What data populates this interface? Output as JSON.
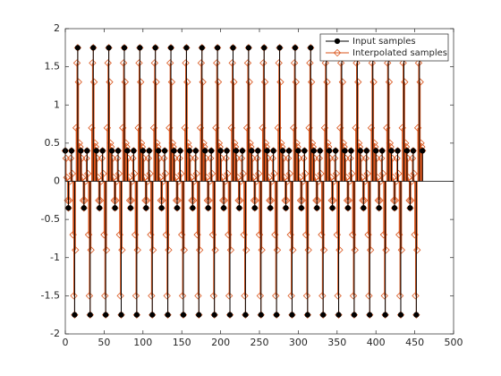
{
  "chart_data": {
    "type": "stem",
    "xlim": [
      0,
      500
    ],
    "xticks": [
      0,
      50,
      100,
      150,
      200,
      250,
      300,
      350,
      400,
      450,
      500
    ],
    "ylim": [
      -2,
      2
    ],
    "yticks": [
      -2,
      -1.5,
      -1,
      -0.5,
      0,
      0.5,
      1,
      1.5,
      2
    ],
    "legend": "northeast",
    "series": [
      {
        "name": "Input samples",
        "color": "#000000",
        "x": [
          0,
          4,
          8,
          12,
          16,
          20,
          24,
          28,
          32,
          36,
          40,
          44,
          48,
          52,
          56,
          60,
          64,
          68,
          72,
          76,
          80,
          84,
          88,
          92,
          96,
          100,
          104,
          108,
          112,
          116,
          120,
          124,
          128,
          132,
          136,
          140,
          144,
          148,
          152,
          156,
          160,
          164,
          168,
          172,
          176,
          180,
          184,
          188,
          192,
          196,
          200,
          204,
          208,
          212,
          216,
          220,
          224,
          228,
          232,
          236,
          240,
          244,
          248,
          252,
          256,
          260,
          264,
          268,
          272,
          276,
          280,
          284,
          288,
          292,
          296,
          300,
          304,
          308,
          312,
          316,
          320,
          324,
          328,
          332,
          336,
          340,
          344,
          348,
          352,
          356,
          360,
          364,
          368,
          372,
          376,
          380,
          384,
          388,
          392,
          396,
          400,
          404,
          408,
          412,
          416,
          420,
          424,
          428,
          432,
          436,
          440,
          444,
          448,
          452,
          456,
          460
        ],
        "values": [
          0.4,
          -0.35,
          0.4,
          -1.75,
          1.75,
          0.4,
          -0.35,
          0.4,
          -1.75,
          1.75,
          0.4,
          -0.35,
          0.4,
          -1.75,
          1.75,
          0.4,
          -0.35,
          0.4,
          -1.75,
          1.75,
          0.4,
          -0.35,
          0.4,
          -1.75,
          1.75,
          0.4,
          -0.35,
          0.4,
          -1.75,
          1.75,
          0.4,
          -0.35,
          0.4,
          -1.75,
          1.75,
          0.4,
          -0.35,
          0.4,
          -1.75,
          1.75,
          0.4,
          -0.35,
          0.4,
          -1.75,
          1.75,
          0.4,
          -0.35,
          0.4,
          -1.75,
          1.75,
          0.4,
          -0.35,
          0.4,
          -1.75,
          1.75,
          0.4,
          -0.35,
          0.4,
          -1.75,
          1.75,
          0.4,
          -0.35,
          0.4,
          -1.75,
          1.75,
          0.4,
          -0.35,
          0.4,
          -1.75,
          1.75,
          0.4,
          -0.35,
          0.4,
          -1.75,
          1.75,
          0.4,
          -0.35,
          0.4,
          -1.75,
          1.75,
          0.4,
          -0.35,
          0.4,
          -1.75,
          1.75,
          0.4,
          -0.35,
          0.4,
          -1.75,
          1.75,
          0.4,
          -0.35,
          0.4,
          -1.75,
          1.75,
          0.4,
          -0.35,
          0.4,
          -1.75,
          1.75,
          0.4,
          -0.35,
          0.4,
          -1.75,
          1.75,
          0.4,
          -0.35,
          0.4,
          -1.75,
          1.75,
          0.4,
          -0.35,
          0.4,
          -1.75,
          1.75,
          0.4
        ]
      },
      {
        "name": "Interpolated samples",
        "color": "#d95319",
        "values": [
          0.4,
          0.3,
          0.05,
          -0.25,
          -0.35,
          -0.25,
          0,
          0.3,
          0.4,
          0.1,
          -0.7,
          -1.5,
          -1.75,
          -0.9,
          0.7,
          1.55,
          1.75,
          1.3,
          0.5,
          0.45,
          0.4,
          0.3,
          0.05,
          -0.25,
          -0.35,
          -0.25,
          0,
          0.3,
          0.4,
          0.1,
          -0.7,
          -1.5,
          -1.75,
          -0.9,
          0.7,
          1.55,
          1.75,
          1.3,
          0.5,
          0.45,
          0.4,
          0.3,
          0.05,
          -0.25,
          -0.35,
          -0.25,
          0,
          0.3,
          0.4,
          0.1,
          -0.7,
          -1.5,
          -1.75,
          -0.9,
          0.7,
          1.55,
          1.75,
          1.3,
          0.5,
          0.45,
          0.4,
          0.3,
          0.05,
          -0.25,
          -0.35,
          -0.25,
          0,
          0.3,
          0.4,
          0.1,
          -0.7,
          -1.5,
          -1.75,
          -0.9,
          0.7,
          1.55,
          1.75,
          1.3,
          0.5,
          0.45,
          0.4,
          0.3,
          0.05,
          -0.25,
          -0.35,
          -0.25,
          0,
          0.3,
          0.4,
          0.1,
          -0.7,
          -1.5,
          -1.75,
          -0.9,
          0.7,
          1.55,
          1.75,
          1.3,
          0.5,
          0.45,
          0.4,
          0.3,
          0.05,
          -0.25,
          -0.35,
          -0.25,
          0,
          0.3,
          0.4,
          0.1,
          -0.7,
          -1.5,
          -1.75,
          -0.9,
          0.7,
          1.55,
          1.75,
          1.3,
          0.5,
          0.45,
          0.4,
          0.3,
          0.05,
          -0.25,
          -0.35,
          -0.25,
          0,
          0.3,
          0.4,
          0.1,
          -0.7,
          -1.5,
          -1.75,
          -0.9,
          0.7,
          1.55,
          1.75,
          1.3,
          0.5,
          0.45,
          0.4,
          0.3,
          0.05,
          -0.25,
          -0.35,
          -0.25,
          0,
          0.3,
          0.4,
          0.1,
          -0.7,
          -1.5,
          -1.75,
          -0.9,
          0.7,
          1.55,
          1.75,
          1.3,
          0.5,
          0.45,
          0.4,
          0.3,
          0.05,
          -0.25,
          -0.35,
          -0.25,
          0,
          0.3,
          0.4,
          0.1,
          -0.7,
          -1.5,
          -1.75,
          -0.9,
          0.7,
          1.55,
          1.75,
          1.3,
          0.5,
          0.45,
          0.4,
          0.3,
          0.05,
          -0.25,
          -0.35,
          -0.25,
          0,
          0.3,
          0.4,
          0.1,
          -0.7,
          -1.5,
          -1.75,
          -0.9,
          0.7,
          1.55,
          1.75,
          1.3,
          0.5,
          0.45,
          0.4,
          0.3,
          0.05,
          -0.25,
          -0.35,
          -0.25,
          0,
          0.3,
          0.4,
          0.1,
          -0.7,
          -1.5,
          -1.75,
          -0.9,
          0.7,
          1.55,
          1.75,
          1.3,
          0.5,
          0.45,
          0.4,
          0.3,
          0.05,
          -0.25,
          -0.35,
          -0.25,
          0,
          0.3,
          0.4,
          0.1,
          -0.7,
          -1.5,
          -1.75,
          -0.9,
          0.7,
          1.55,
          1.75,
          1.3,
          0.5,
          0.45,
          0.4,
          0.3,
          0.05,
          -0.25,
          -0.35,
          -0.25,
          0,
          0.3,
          0.4,
          0.1,
          -0.7,
          -1.5,
          -1.75,
          -0.9,
          0.7,
          1.55,
          1.75,
          1.3,
          0.5,
          0.45,
          0.4,
          0.3,
          0.05,
          -0.25,
          -0.35,
          -0.25,
          0,
          0.3,
          0.4,
          0.1,
          -0.7,
          -1.5,
          -1.75,
          -0.9,
          0.7,
          1.55,
          1.75,
          1.3,
          0.5,
          0.45,
          0.4,
          0.3,
          0.05,
          -0.25,
          -0.35,
          -0.25,
          0,
          0.3,
          0.4,
          0.1,
          -0.7,
          -1.5,
          -1.75,
          -0.9,
          0.7,
          1.55,
          1.75,
          1.3,
          0.5,
          0.45,
          0.4,
          0.3,
          0.05,
          -0.25,
          -0.35,
          -0.25,
          0,
          0.3,
          0.4,
          0.1,
          -0.7,
          -1.5,
          -1.75,
          -0.9,
          0.7,
          1.55,
          1.75,
          1.3,
          0.5,
          0.45,
          0.4,
          0.3,
          0.05,
          -0.25,
          -0.35,
          -0.25,
          0,
          0.3,
          0.4,
          0.1,
          -0.7,
          -1.5,
          -1.75,
          -0.9,
          0.7,
          1.55,
          1.75,
          1.3,
          0.5,
          0.45,
          0.4,
          0.3,
          0.05,
          -0.25,
          -0.35,
          -0.25,
          0,
          0.3,
          0.4,
          0.1,
          -0.7,
          -1.5,
          -1.75,
          -0.9,
          0.7,
          1.55,
          1.75,
          1.3,
          0.5,
          0.45,
          0.4,
          0.3,
          0.05,
          -0.25,
          -0.35,
          -0.25,
          0,
          0.3,
          0.4,
          0.1,
          -0.7,
          -1.5,
          -1.75,
          -0.9,
          0.7,
          1.55,
          1.75,
          1.3,
          0.5,
          0.45,
          0.4,
          0.3,
          0.05,
          -0.25,
          -0.35,
          -0.25,
          0,
          0.3,
          0.4,
          0.1,
          -0.7,
          -1.5,
          -1.75,
          -0.9,
          0.7,
          1.55,
          1.75,
          1.3,
          0.5,
          0.45,
          0.4,
          0.3,
          0.05,
          -0.25,
          -0.35,
          -0.25,
          0,
          0.3,
          0.4,
          0.1,
          -0.7,
          -1.5,
          -1.75,
          -0.9,
          0.7,
          1.55,
          1.75,
          1.3,
          0.5,
          0.45,
          0.4,
          0.3,
          0.05,
          -0.25,
          -0.35,
          -0.25,
          0,
          0.3,
          0.4,
          0.1,
          -0.7,
          -1.5,
          -1.75,
          -0.9,
          0.7,
          1.55,
          1.75,
          1.3,
          0.5,
          0.45,
          0.4,
          0.3,
          0.05,
          -0.25,
          -0.35,
          -0.25,
          0,
          0.3,
          0.4,
          0.1,
          -0.7,
          -1.5,
          -1.75,
          -0.9,
          0.7,
          1.55,
          1.75,
          1.3,
          0.5,
          0.45,
          0.4
        ]
      }
    ]
  }
}
